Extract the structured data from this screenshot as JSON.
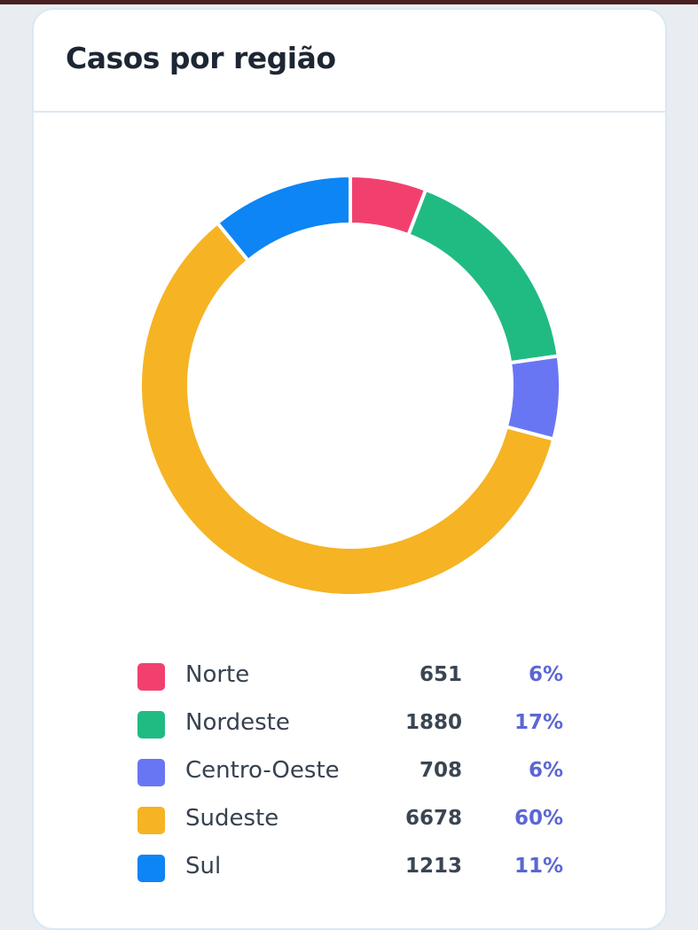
{
  "card": {
    "title": "Casos por região"
  },
  "chart_data": {
    "type": "pie",
    "style": "donut",
    "title": "Casos por região",
    "categories": [
      "Norte",
      "Nordeste",
      "Centro-Oeste",
      "Sudeste",
      "Sul"
    ],
    "values": [
      651,
      1880,
      708,
      6678,
      1213
    ],
    "percent_labels": [
      "6%",
      "17%",
      "6%",
      "60%",
      "11%"
    ],
    "colors": [
      "#f2406e",
      "#20bb82",
      "#6976f4",
      "#f6b324",
      "#0d85f4"
    ],
    "legend_position": "bottom"
  },
  "legend": [
    {
      "label": "Norte",
      "value": "651",
      "percent": "6%",
      "color": "#f2406e"
    },
    {
      "label": "Nordeste",
      "value": "1880",
      "percent": "17%",
      "color": "#20bb82"
    },
    {
      "label": "Centro-Oeste",
      "value": "708",
      "percent": "6%",
      "color": "#6976f4"
    },
    {
      "label": "Sudeste",
      "value": "6678",
      "percent": "60%",
      "color": "#f6b324"
    },
    {
      "label": "Sul",
      "value": "1213",
      "percent": "11%",
      "color": "#0d85f4"
    }
  ]
}
